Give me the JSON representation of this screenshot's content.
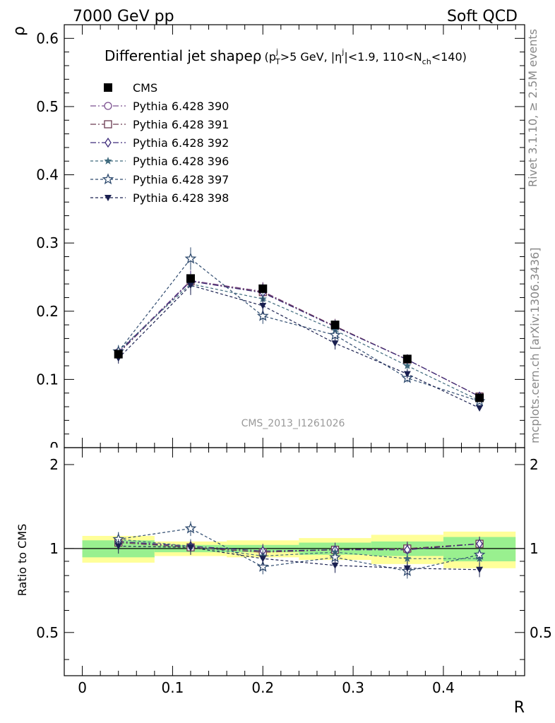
{
  "header": {
    "left": "7000 GeV pp",
    "right": "Soft QCD"
  },
  "side": {
    "rivet": "Rivet 3.1.10, ≥ 2.5M events",
    "mcplots": "mcplots.cern.ch [arXiv:1306.3436]"
  },
  "watermark": "CMS_2013_I1261026",
  "chart_data": {
    "type": "line",
    "title": {
      "main": "Differential jet shape",
      "rho": "ρ",
      "cond1": "(p",
      "cond1_sup": "j",
      "cond1_sub": "T",
      "cond2": ">5 GeV, |η",
      "cond2_sup": "j",
      "cond3": "|<1.9, 110<N",
      "cond3_sub": "ch",
      "cond4": "<140)"
    },
    "xlabel": "R",
    "ylabel": "ρ",
    "ratio_ylabel": "Ratio to CMS",
    "xlim": [
      -0.02,
      0.49
    ],
    "ylim": [
      0,
      0.62
    ],
    "ratio_ylim": [
      0.35,
      2.3
    ],
    "x_ticks": [
      "0",
      "0.1",
      "0.2",
      "0.3",
      "0.4"
    ],
    "y_ticks": [
      "0.1",
      "0.2",
      "0.3",
      "0.4",
      "0.5",
      "0.6"
    ],
    "y_tick_cut": "0",
    "ratio_ticks": [
      "0.5",
      "1",
      "2"
    ],
    "bins": [
      [
        0,
        0.08
      ],
      [
        0.08,
        0.16
      ],
      [
        0.16,
        0.24
      ],
      [
        0.24,
        0.32
      ],
      [
        0.32,
        0.4
      ],
      [
        0.4,
        0.48
      ]
    ],
    "x": [
      0.04,
      0.12,
      0.2,
      0.28,
      0.36,
      0.44
    ],
    "data": {
      "name": "CMS",
      "values": [
        0.137,
        0.248,
        0.233,
        0.18,
        0.13,
        0.073
      ],
      "band_1sigma": [
        0.07,
        0.03,
        0.03,
        0.05,
        0.06,
        0.1
      ],
      "band_2sigma": [
        0.11,
        0.06,
        0.07,
        0.09,
        0.12,
        0.15
      ]
    },
    "series": [
      {
        "name": "Pythia 6.428 390",
        "color": "#7b4f8f",
        "marker": "open-circle",
        "dash": "8,3,2,3",
        "values": [
          0.14,
          0.245,
          0.229,
          0.178,
          0.129,
          0.075
        ],
        "ratio": [
          1.06,
          1.01,
          0.97,
          0.99,
          0.99,
          1.04
        ]
      },
      {
        "name": "Pythia 6.428 391",
        "color": "#6a3a50",
        "marker": "open-square",
        "dash": "8,3,2,3",
        "values": [
          0.138,
          0.244,
          0.228,
          0.178,
          0.129,
          0.075
        ],
        "ratio": [
          1.05,
          1.01,
          0.97,
          0.99,
          1.0,
          1.04
        ]
      },
      {
        "name": "Pythia 6.428 392",
        "color": "#3d2a7a",
        "marker": "open-diamond",
        "dash": "8,3,2,3",
        "values": [
          0.139,
          0.244,
          0.227,
          0.177,
          0.129,
          0.075
        ],
        "ratio": [
          1.06,
          1.02,
          0.98,
          0.99,
          0.99,
          1.04
        ]
      },
      {
        "name": "Pythia 6.428 396",
        "color": "#3f6a7d",
        "marker": "filled-star",
        "dash": "4,3",
        "values": [
          0.142,
          0.24,
          0.218,
          0.172,
          0.12,
          0.069
        ],
        "ratio": [
          1.08,
          1.02,
          0.94,
          0.97,
          0.92,
          0.92
        ]
      },
      {
        "name": "Pythia 6.428 397",
        "color": "#2e4a6e",
        "marker": "open-star",
        "dash": "4,3",
        "values": [
          0.141,
          0.277,
          0.193,
          0.165,
          0.102,
          0.068
        ],
        "ratio": [
          1.08,
          1.18,
          0.86,
          0.93,
          0.83,
          0.95
        ]
      },
      {
        "name": "Pythia 6.428 398",
        "color": "#1a2050",
        "marker": "filled-triangle-down",
        "dash": "4,3",
        "values": [
          0.131,
          0.238,
          0.208,
          0.153,
          0.108,
          0.058
        ],
        "ratio": [
          1.02,
          1.01,
          0.92,
          0.87,
          0.85,
          0.84
        ]
      }
    ]
  }
}
